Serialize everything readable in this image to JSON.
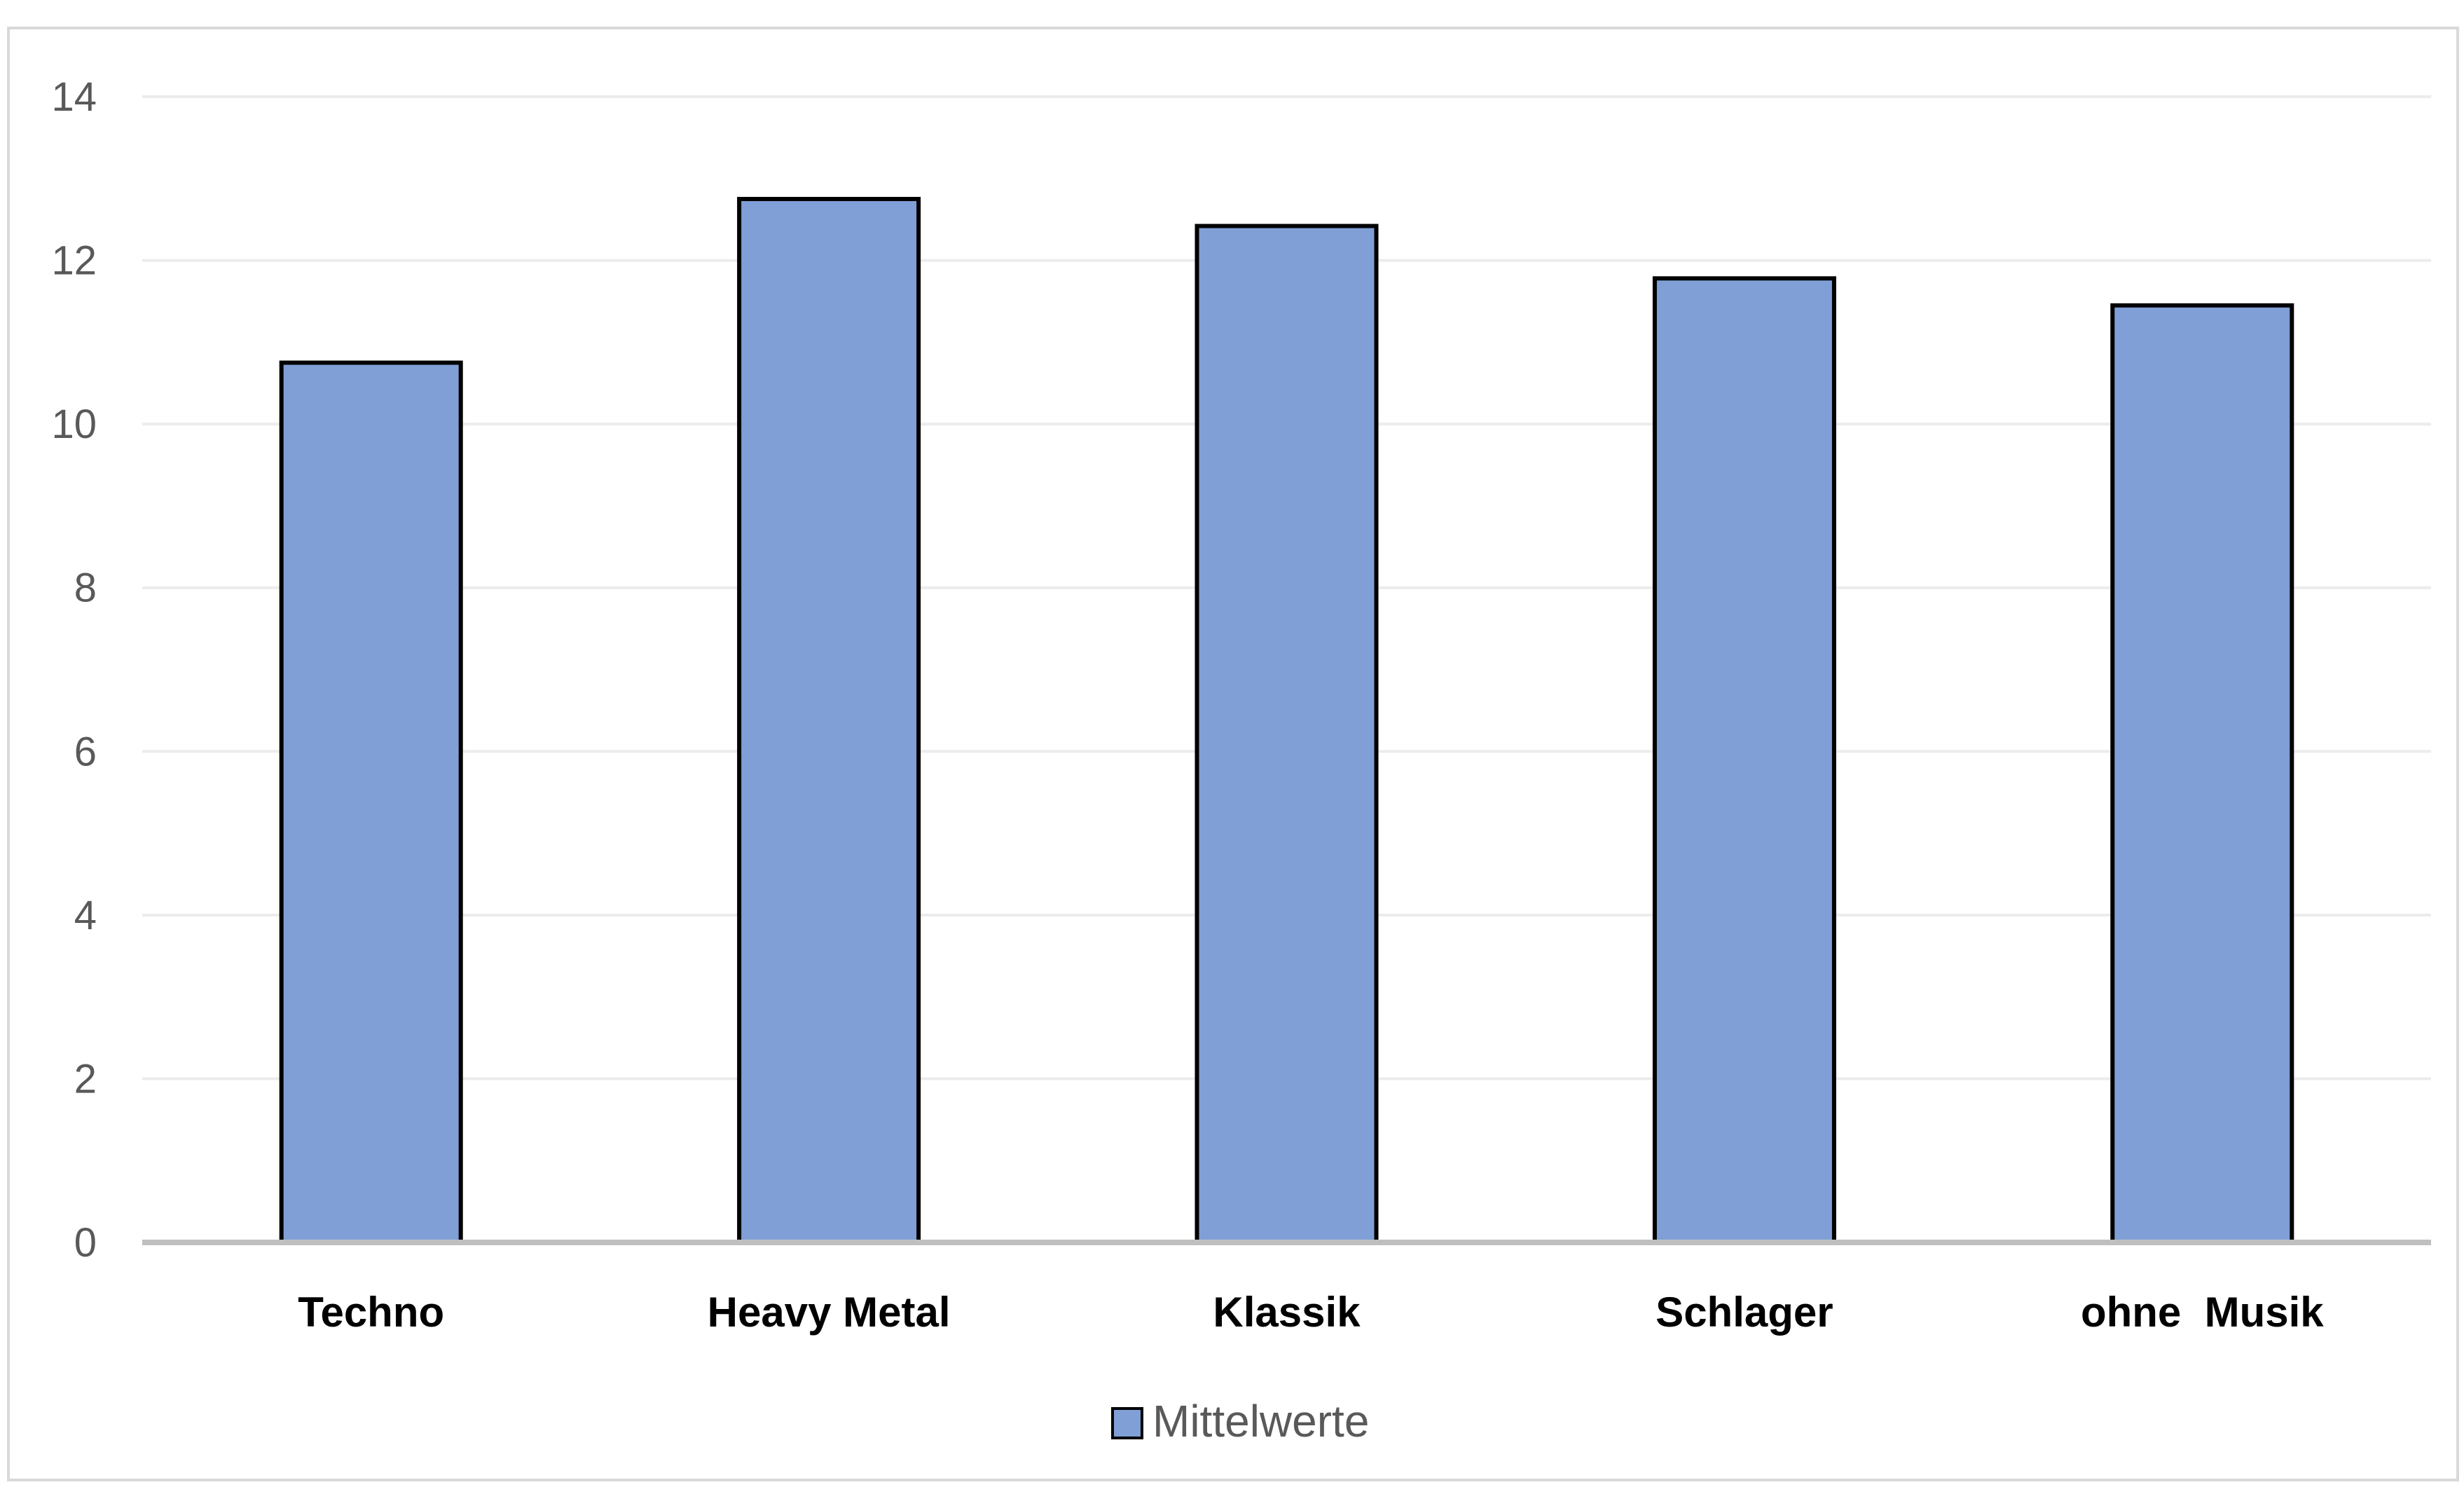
{
  "chart_data": {
    "type": "bar",
    "categories": [
      "Techno",
      "Heavy Metal",
      "Klassik",
      "Schlager",
      "ohne  Musik"
    ],
    "series": [
      {
        "name": "Mittelwerte",
        "values": [
          10.75,
          12.75,
          12.42,
          11.78,
          11.45
        ]
      }
    ],
    "title": "",
    "xlabel": "",
    "ylabel": "",
    "ylim": [
      0,
      14
    ],
    "yticks": [
      0,
      2,
      4,
      6,
      8,
      10,
      12,
      14
    ],
    "grid": true,
    "legend_position": "bottom",
    "colors": {
      "bar_fill": "#7f9fd6",
      "bar_stroke": "#000000",
      "grid": "#ececec",
      "axis": "#bfbfbf",
      "tick_text": "#595959",
      "category_text": "#000000"
    }
  }
}
